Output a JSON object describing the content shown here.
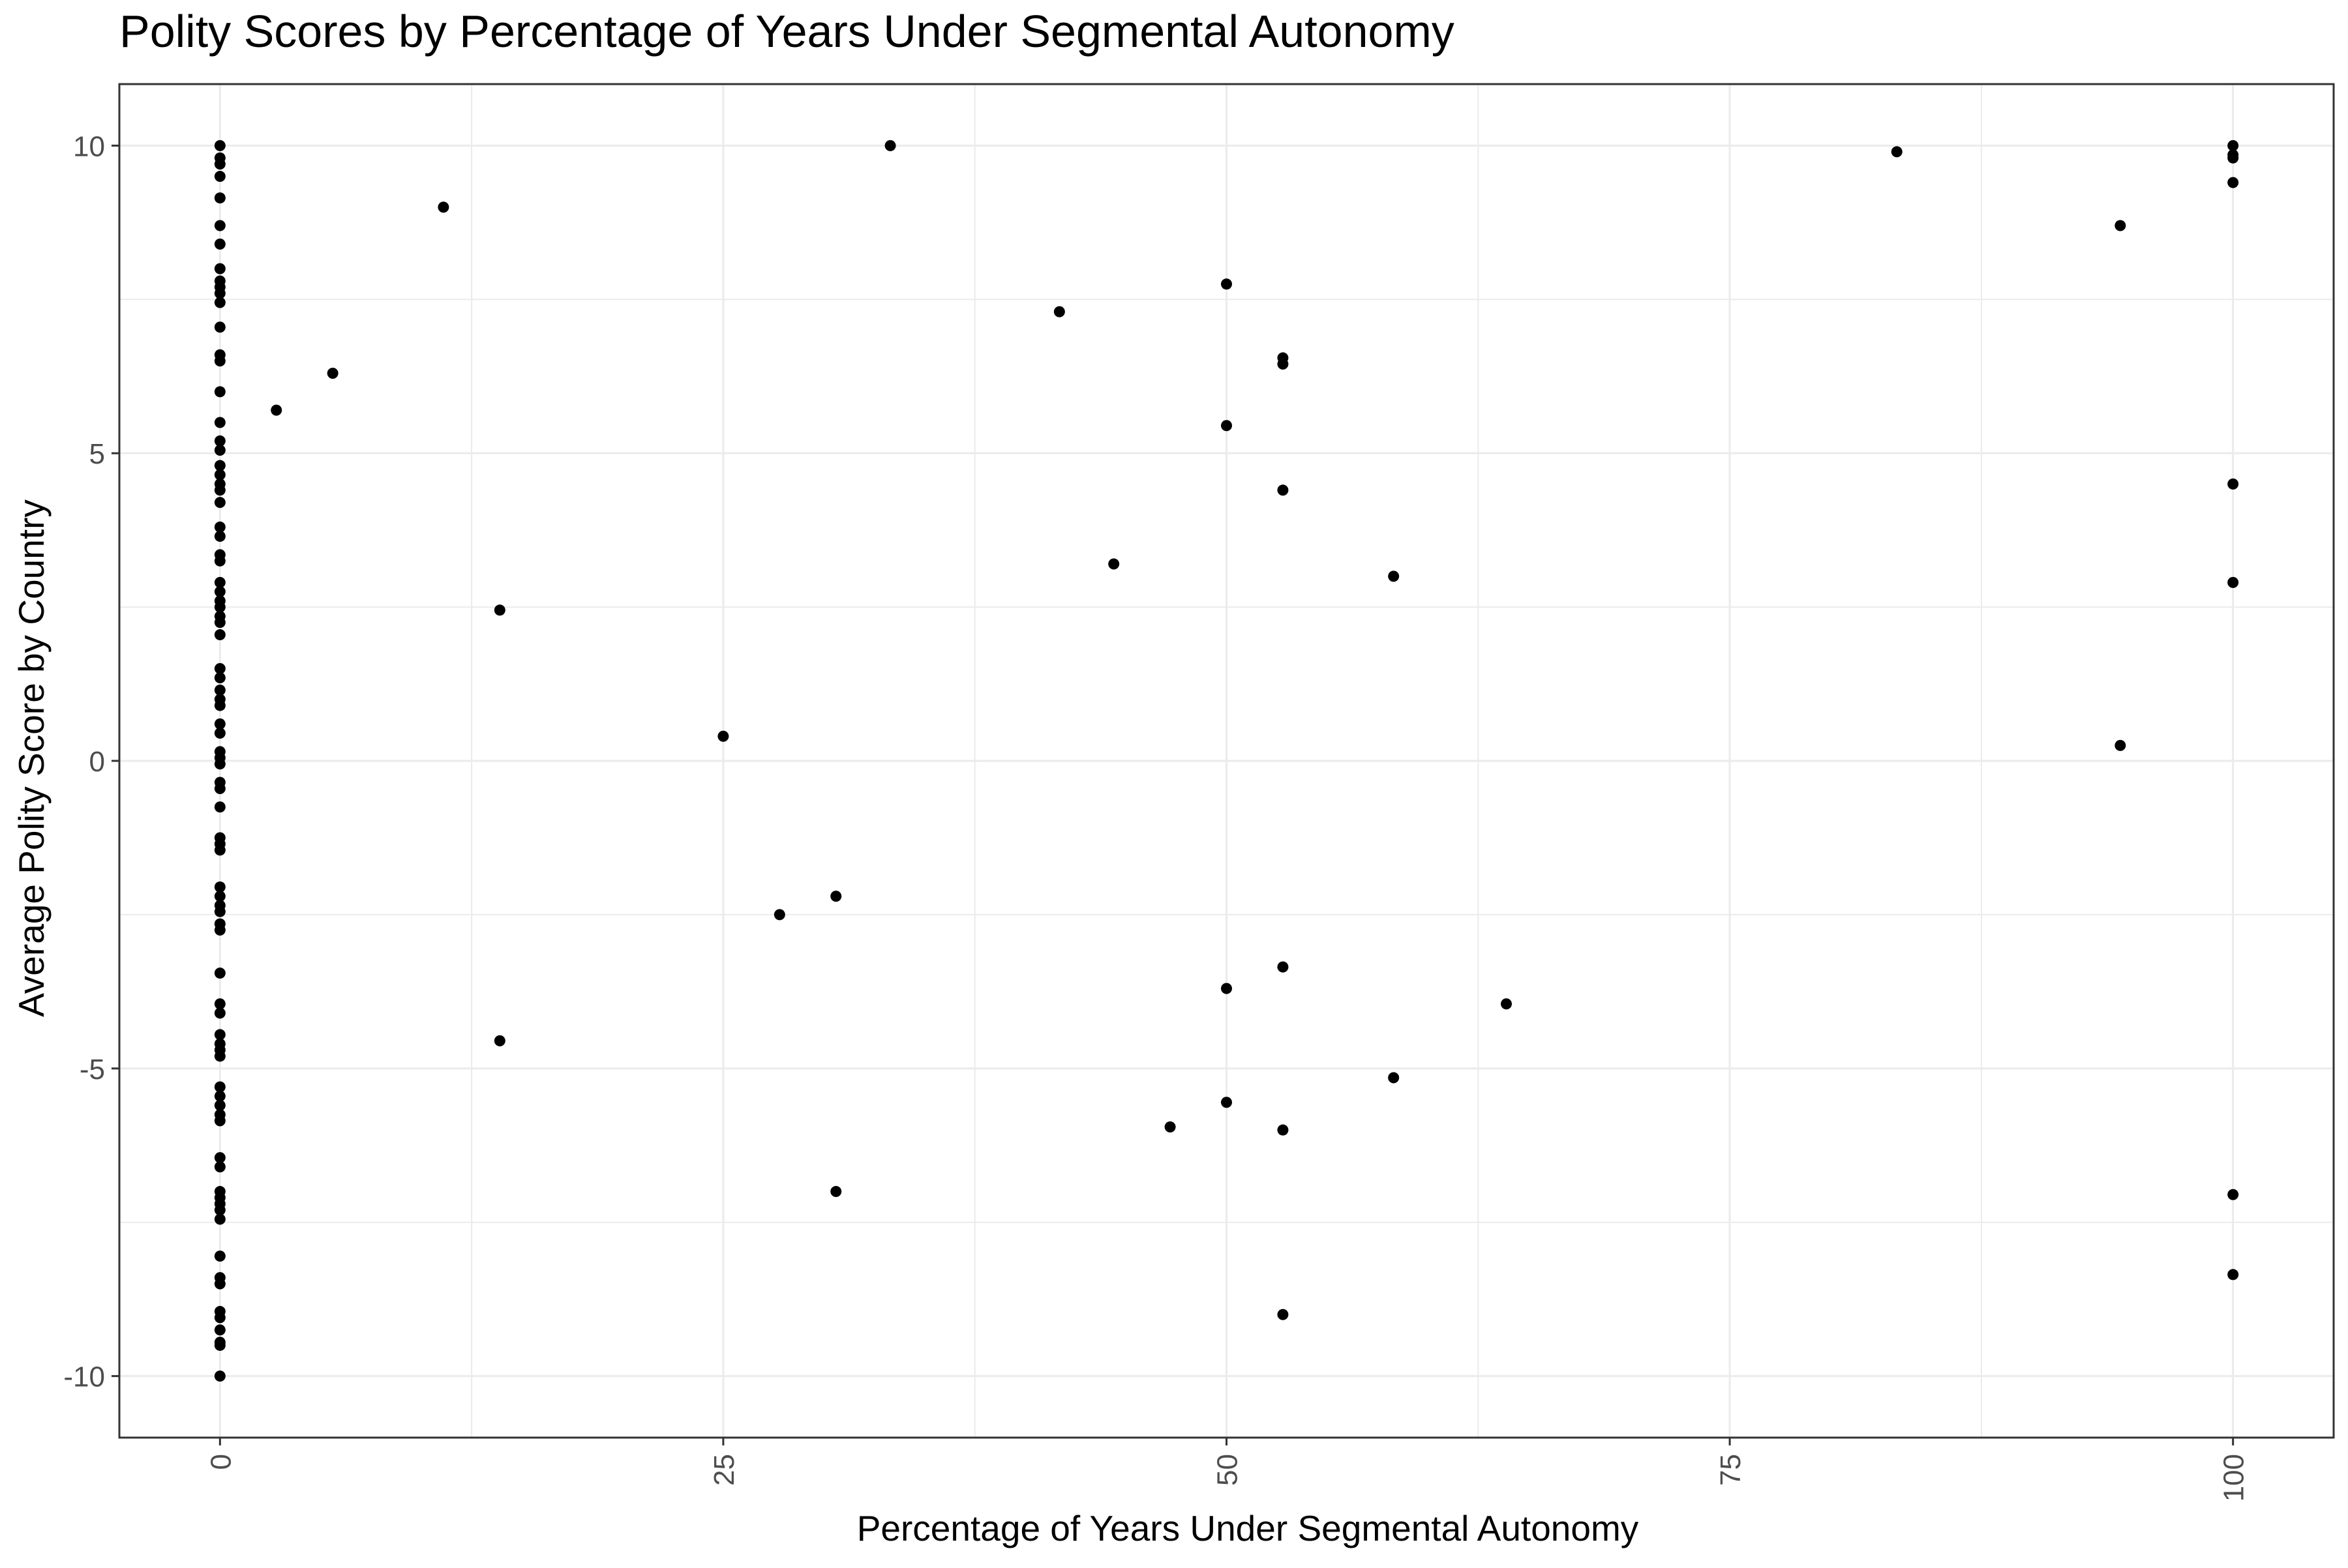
{
  "chart_data": {
    "type": "scatter",
    "title": "Polity Scores by Percentage of Years Under Segmental Autonomy",
    "xlabel": "Percentage of Years Under Segmental Autonomy",
    "ylabel": "Average Polity Score by Country",
    "xlim": [
      -5,
      105
    ],
    "ylim": [
      -11,
      11
    ],
    "x_ticks": [
      0,
      25,
      50,
      75,
      100
    ],
    "x_tick_labels": [
      "0",
      "25",
      "50",
      "75",
      "100"
    ],
    "y_ticks": [
      -10,
      -5,
      0,
      5,
      10
    ],
    "y_tick_labels": [
      "-10",
      "-5",
      "0",
      "5",
      "10"
    ],
    "grid": true,
    "legend": "none",
    "colors": {
      "point": "#000000",
      "grid": "#ebebeb",
      "panel_border": "#333333",
      "text": "#000000",
      "tick_text": "#4d4d4d"
    },
    "series": [
      {
        "points": [
          [
            0,
            10
          ],
          [
            0,
            9.8
          ],
          [
            0,
            9.7
          ],
          [
            0,
            9.5
          ],
          [
            0,
            9.15
          ],
          [
            0,
            8.7
          ],
          [
            0,
            8.4
          ],
          [
            0,
            8.0
          ],
          [
            0,
            7.8
          ],
          [
            0,
            7.7
          ],
          [
            0,
            7.6
          ],
          [
            0,
            7.45
          ],
          [
            0,
            7.05
          ],
          [
            0,
            6.6
          ],
          [
            0,
            6.5
          ],
          [
            0,
            6.0
          ],
          [
            0,
            5.5
          ],
          [
            0,
            5.2
          ],
          [
            0,
            5.05
          ],
          [
            0,
            4.8
          ],
          [
            0,
            4.65
          ],
          [
            0,
            4.5
          ],
          [
            0,
            4.4
          ],
          [
            0,
            4.2
          ],
          [
            0,
            3.8
          ],
          [
            0,
            3.65
          ],
          [
            0,
            3.35
          ],
          [
            0,
            3.25
          ],
          [
            0,
            2.9
          ],
          [
            0,
            2.75
          ],
          [
            0,
            2.6
          ],
          [
            0,
            2.5
          ],
          [
            0,
            2.35
          ],
          [
            0,
            2.25
          ],
          [
            0,
            2.05
          ],
          [
            0,
            1.5
          ],
          [
            0,
            1.35
          ],
          [
            0,
            1.15
          ],
          [
            0,
            1.0
          ],
          [
            0,
            0.9
          ],
          [
            0,
            0.6
          ],
          [
            0,
            0.45
          ],
          [
            0,
            0.15
          ],
          [
            0,
            0.05
          ],
          [
            0,
            -0.05
          ],
          [
            0,
            -0.35
          ],
          [
            0,
            -0.45
          ],
          [
            0,
            -0.75
          ],
          [
            0,
            -1.25
          ],
          [
            0,
            -1.35
          ],
          [
            0,
            -1.45
          ],
          [
            0,
            -2.05
          ],
          [
            0,
            -2.2
          ],
          [
            0,
            -2.35
          ],
          [
            0,
            -2.45
          ],
          [
            0,
            -2.65
          ],
          [
            0,
            -2.75
          ],
          [
            0,
            -3.45
          ],
          [
            0,
            -3.95
          ],
          [
            0,
            -4.1
          ],
          [
            0,
            -4.45
          ],
          [
            0,
            -4.6
          ],
          [
            0,
            -4.7
          ],
          [
            0,
            -4.8
          ],
          [
            0,
            -5.3
          ],
          [
            0,
            -5.45
          ],
          [
            0,
            -5.6
          ],
          [
            0,
            -5.75
          ],
          [
            0,
            -5.85
          ],
          [
            0,
            -6.45
          ],
          [
            0,
            -6.6
          ],
          [
            0,
            -7.0
          ],
          [
            0,
            -7.1
          ],
          [
            0,
            -7.2
          ],
          [
            0,
            -7.3
          ],
          [
            0,
            -7.45
          ],
          [
            0,
            -8.05
          ],
          [
            0,
            -8.4
          ],
          [
            0,
            -8.5
          ],
          [
            0,
            -8.95
          ],
          [
            0,
            -9.05
          ],
          [
            0,
            -9.25
          ],
          [
            0,
            -9.45
          ],
          [
            0,
            -9.5
          ],
          [
            0,
            -10
          ],
          [
            2.8,
            5.7
          ],
          [
            5.6,
            6.3
          ],
          [
            11.1,
            9.0
          ],
          [
            13.9,
            2.45
          ],
          [
            13.9,
            -4.55
          ],
          [
            25,
            0.4
          ],
          [
            27.8,
            -2.5
          ],
          [
            30.6,
            -2.2
          ],
          [
            30.6,
            -7.0
          ],
          [
            33.3,
            10
          ],
          [
            41.7,
            7.3
          ],
          [
            44.4,
            3.2
          ],
          [
            47.2,
            -5.95
          ],
          [
            50,
            7.75
          ],
          [
            50,
            5.45
          ],
          [
            50,
            -3.7
          ],
          [
            50,
            -5.55
          ],
          [
            52.8,
            6.55
          ],
          [
            52.8,
            6.45
          ],
          [
            52.8,
            4.4
          ],
          [
            52.8,
            -3.35
          ],
          [
            52.8,
            -6.0
          ],
          [
            52.8,
            -9.0
          ],
          [
            58.3,
            3.0
          ],
          [
            58.3,
            -5.15
          ],
          [
            63.9,
            -3.95
          ],
          [
            83.3,
            9.9
          ],
          [
            94.4,
            8.7
          ],
          [
            94.4,
            0.25
          ],
          [
            100,
            10
          ],
          [
            100,
            9.85
          ],
          [
            100,
            9.8
          ],
          [
            100,
            9.4
          ],
          [
            100,
            4.5
          ],
          [
            100,
            2.9
          ],
          [
            100,
            -7.05
          ],
          [
            100,
            -8.35
          ]
        ]
      }
    ]
  }
}
